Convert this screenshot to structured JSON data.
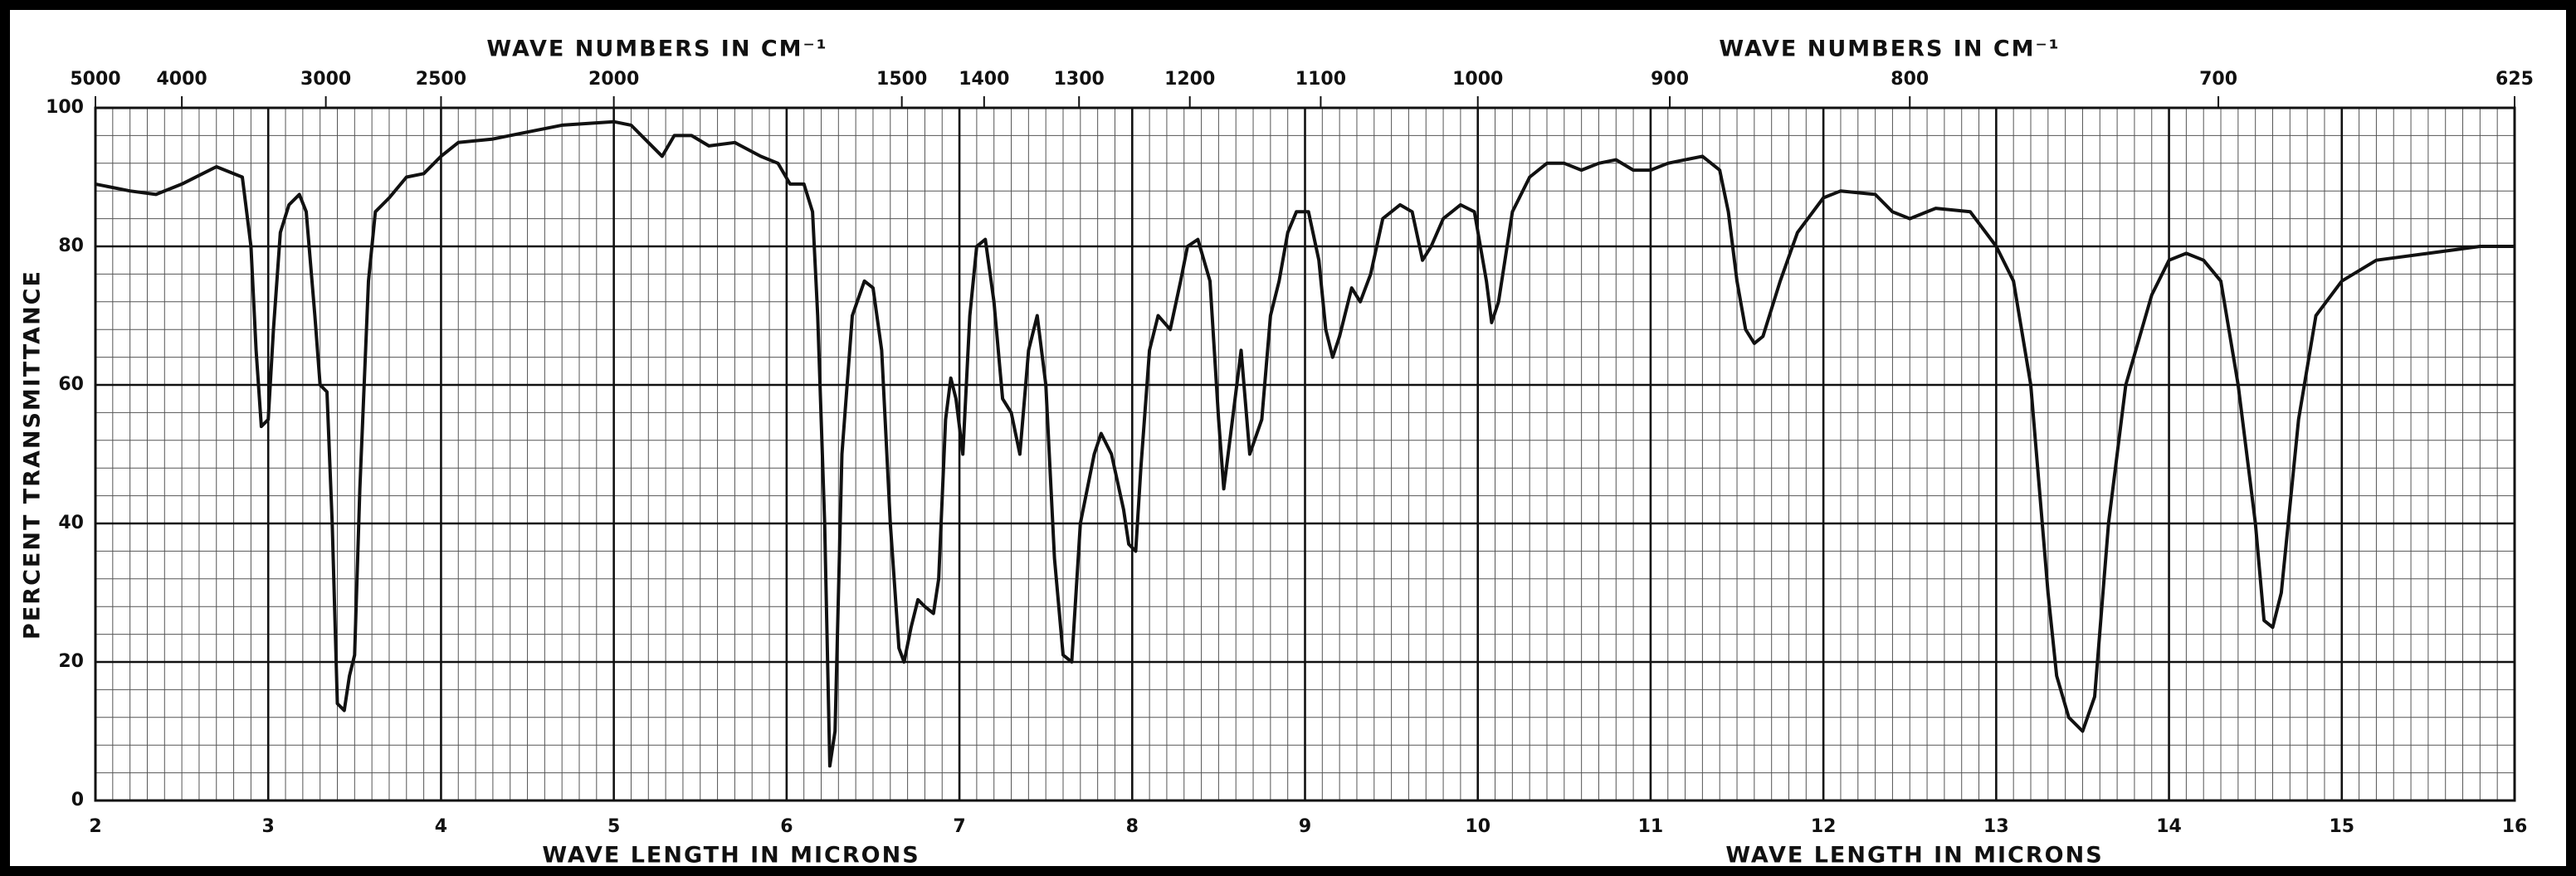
{
  "chart_data": {
    "type": "line",
    "x2label": "WAVE NUMBERS IN CM⁻¹",
    "xlabel": "WAVE LENGTH IN MICRONS",
    "ylabel": "PERCENT TRANSMITTANCE",
    "xlim": [
      2,
      16
    ],
    "xticks": [
      2,
      3,
      4,
      5,
      6,
      7,
      8,
      9,
      10,
      11,
      12,
      13,
      14,
      15,
      16
    ],
    "x2ticks": [
      5000,
      4000,
      3000,
      2500,
      2000,
      1500,
      1400,
      1300,
      1200,
      1100,
      1000,
      900,
      800,
      700,
      625
    ],
    "ylim": [
      0,
      100
    ],
    "yticks": [
      0,
      20,
      40,
      60,
      80,
      100
    ],
    "grid": true,
    "color": "#111111",
    "x": [
      2.0,
      2.2,
      2.35,
      2.5,
      2.7,
      2.85,
      2.9,
      2.93,
      2.96,
      3.0,
      3.03,
      3.07,
      3.12,
      3.18,
      3.22,
      3.27,
      3.3,
      3.34,
      3.37,
      3.4,
      3.44,
      3.47,
      3.5,
      3.53,
      3.58,
      3.62,
      3.7,
      3.8,
      3.9,
      4.0,
      4.1,
      4.3,
      4.5,
      4.7,
      5.0,
      5.1,
      5.2,
      5.28,
      5.35,
      5.45,
      5.55,
      5.7,
      5.85,
      5.95,
      6.02,
      6.1,
      6.15,
      6.18,
      6.22,
      6.25,
      6.28,
      6.32,
      6.38,
      6.45,
      6.5,
      6.55,
      6.6,
      6.65,
      6.68,
      6.72,
      6.76,
      6.8,
      6.85,
      6.88,
      6.92,
      6.95,
      6.98,
      7.02,
      7.06,
      7.1,
      7.15,
      7.2,
      7.25,
      7.3,
      7.35,
      7.4,
      7.45,
      7.5,
      7.55,
      7.6,
      7.65,
      7.7,
      7.78,
      7.82,
      7.88,
      7.95,
      7.98,
      8.02,
      8.05,
      8.1,
      8.15,
      8.22,
      8.28,
      8.32,
      8.38,
      8.45,
      8.5,
      8.53,
      8.58,
      8.63,
      8.68,
      8.75,
      8.8,
      8.85,
      8.9,
      8.95,
      9.02,
      9.08,
      9.12,
      9.16,
      9.2,
      9.27,
      9.32,
      9.38,
      9.45,
      9.55,
      9.62,
      9.68,
      9.73,
      9.8,
      9.9,
      9.98,
      10.05,
      10.08,
      10.12,
      10.2,
      10.3,
      10.4,
      10.5,
      10.6,
      10.7,
      10.8,
      10.9,
      11.0,
      11.1,
      11.2,
      11.3,
      11.4,
      11.45,
      11.5,
      11.55,
      11.6,
      11.65,
      11.75,
      11.85,
      12.0,
      12.1,
      12.3,
      12.4,
      12.5,
      12.65,
      12.85,
      13.0,
      13.1,
      13.2,
      13.3,
      13.35,
      13.42,
      13.5,
      13.57,
      13.65,
      13.75,
      13.9,
      14.0,
      14.1,
      14.2,
      14.3,
      14.4,
      14.5,
      14.55,
      14.6,
      14.65,
      14.75,
      14.85,
      15.0,
      15.2,
      15.5,
      15.8,
      16.0
    ],
    "values": [
      89,
      88,
      87.5,
      89,
      91.5,
      90,
      80,
      65,
      54,
      55,
      68,
      82,
      86,
      87.5,
      85,
      70,
      60,
      59,
      40,
      14,
      13,
      18,
      21,
      45,
      75,
      85,
      87,
      90,
      90.5,
      93,
      95,
      95.5,
      96.5,
      97.5,
      98,
      97.5,
      95,
      93,
      96,
      96,
      94.5,
      95,
      93,
      92,
      89,
      89,
      85,
      70,
      40,
      5,
      10,
      50,
      70,
      75,
      74,
      65,
      40,
      22,
      20,
      25,
      29,
      28,
      27,
      32,
      55,
      61,
      58,
      50,
      70,
      80,
      81,
      72,
      58,
      56,
      50,
      65,
      70,
      60,
      35,
      21,
      20,
      40,
      50,
      53,
      50,
      42,
      37,
      36,
      48,
      65,
      70,
      68,
      75,
      80,
      81,
      75,
      55,
      45,
      55,
      65,
      50,
      55,
      70,
      75,
      82,
      85,
      85,
      78,
      68,
      64,
      67,
      74,
      72,
      76,
      84,
      86,
      85,
      78,
      80,
      84,
      86,
      85,
      75,
      69,
      72,
      85,
      90,
      92,
      92,
      91,
      92,
      92.5,
      91,
      91,
      92,
      92.5,
      93,
      91,
      85,
      75,
      68,
      66,
      67,
      75,
      82,
      87,
      88,
      87.5,
      85,
      84,
      85.5,
      85,
      80,
      75,
      60,
      30,
      18,
      12,
      10,
      15,
      40,
      60,
      73,
      78,
      79,
      78,
      75,
      60,
      40,
      26,
      25,
      30,
      55,
      70,
      75,
      78,
      79,
      80,
      80
    ]
  }
}
